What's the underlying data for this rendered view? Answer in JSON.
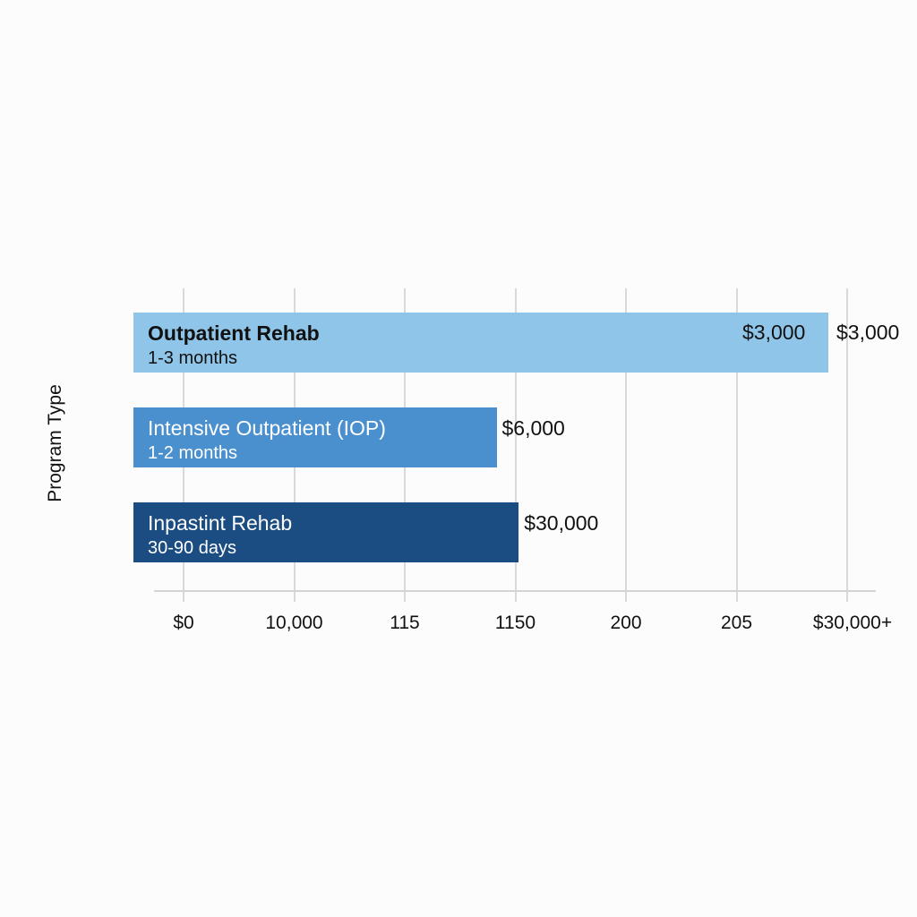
{
  "chart_data": {
    "type": "bar",
    "orientation": "horizontal",
    "title": "",
    "xlabel": "",
    "ylabel": "Program Type",
    "grid": true,
    "xticks": [
      "$0",
      "10,000",
      "115",
      "1150",
      "200",
      "205",
      "$30,000+"
    ],
    "categories": [
      "Outpatient Rehab",
      "Intensive Outpatient (IOP)",
      "Inpastint Rehab"
    ],
    "durations": [
      "1-3 months",
      "1-2 months",
      "30-90 days"
    ],
    "values": [
      5.83,
      2.83,
      3.03
    ],
    "xlim": [
      0,
      6
    ],
    "bar_labels": [
      [
        "$3,000",
        "$3,000"
      ],
      [
        "$6,000"
      ],
      [
        "$30,000"
      ]
    ],
    "colors": [
      "#8fc5e8",
      "#4a90cf",
      "#1b4c82"
    ],
    "text_colors": [
      "#111111",
      "#ffffff",
      "#ffffff"
    ]
  }
}
